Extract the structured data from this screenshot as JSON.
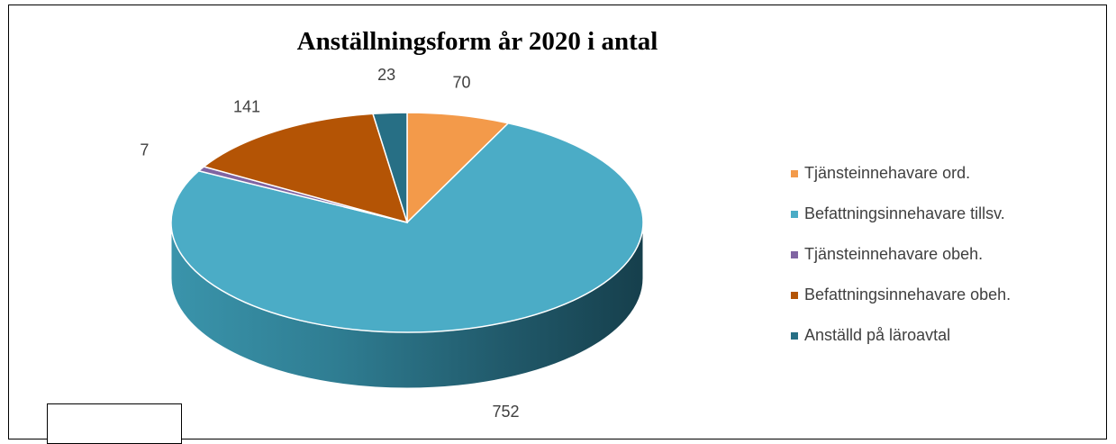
{
  "chart_data": {
    "type": "pie",
    "title": "Anställningsform år 2020 i antal",
    "categories": [
      "Tjänsteinnehavare ord.",
      "Befattningsinnehavare tillsv.",
      "Tjänsteinnehavare obeh.",
      "Befattningsinnehavare obeh.",
      "Anställd på läroavtal"
    ],
    "values": [
      70,
      752,
      7,
      141,
      23
    ],
    "colors": [
      "#F39A4A",
      "#4BACC6",
      "#8064A2",
      "#B45405",
      "#276F85"
    ],
    "legend_position": "right",
    "style": "3d"
  }
}
